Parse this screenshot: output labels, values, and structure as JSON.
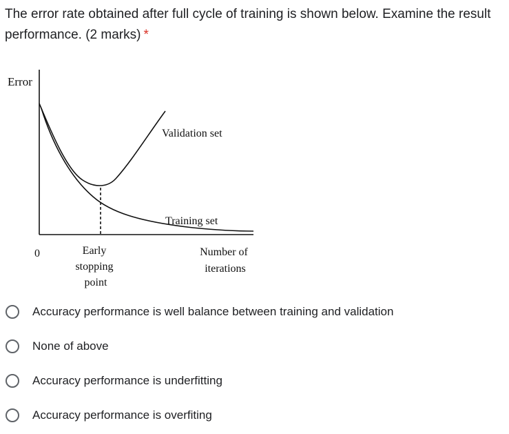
{
  "question": {
    "text": "The error rate obtained after full cycle of training is shown below. Examine the result performance. (2 marks)",
    "required_marker": "*"
  },
  "chart_data": {
    "type": "line",
    "ylabel": "Error",
    "xlabel": "Number of iterations",
    "x_origin_label": "0",
    "annotation": {
      "label": "Early stopping point"
    },
    "series": [
      {
        "name": "Validation set",
        "trend": "decreases to a minimum at the early stopping point, then increases"
      },
      {
        "name": "Training set",
        "trend": "decreases monotonically and flattens"
      }
    ]
  },
  "options": [
    {
      "label": "Accuracy performance is well balance between training and validation"
    },
    {
      "label": "None of above"
    },
    {
      "label": "Accuracy performance is underfitting"
    },
    {
      "label": "Accuracy performance is overfiting"
    }
  ]
}
